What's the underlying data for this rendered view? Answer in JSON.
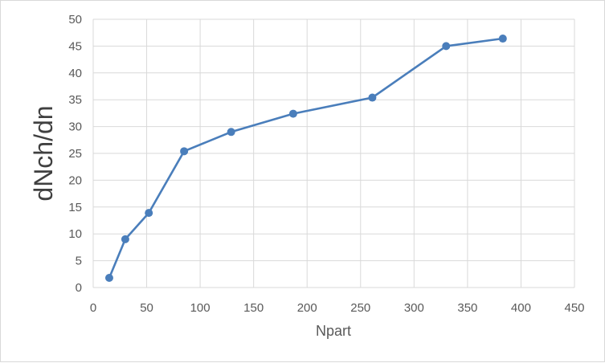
{
  "chart_data": {
    "type": "line",
    "xlabel": "Npart",
    "ylabel": "dNch/dn",
    "xlim": [
      0,
      450
    ],
    "ylim": [
      0,
      50
    ],
    "x_ticks": [
      "0",
      "50",
      "100",
      "150",
      "200",
      "250",
      "300",
      "350",
      "400",
      "450"
    ],
    "y_ticks": [
      "0",
      "5",
      "10",
      "15",
      "20",
      "25",
      "30",
      "35",
      "40",
      "45",
      "50"
    ],
    "grid": true,
    "legend": "none",
    "series": [
      {
        "x": [
          15,
          30,
          52,
          85,
          129,
          187,
          261,
          330,
          383
        ],
        "y": [
          1.8,
          9.0,
          13.9,
          25.4,
          29.0,
          32.4,
          35.4,
          45.0,
          46.4
        ]
      }
    ],
    "colors": {
      "line": "#4a7ebb",
      "marker": "#4a7ebb",
      "grid": "#d9d9d9",
      "axis_text": "#595959"
    }
  }
}
